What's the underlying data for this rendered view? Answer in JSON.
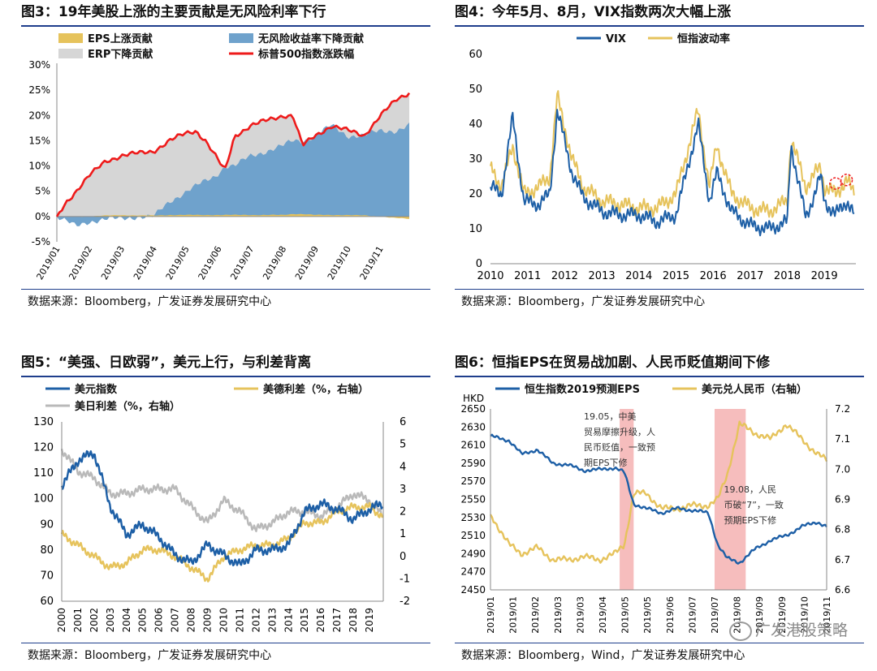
{
  "colors": {
    "rule": "#1f3e8c",
    "blue_dark": "#1d5fa6",
    "blue_light": "#6fa2cc",
    "gold": "#e6c35c",
    "gray": "#d6d6d6",
    "red": "#ee1b1b",
    "gray_line": "#b9b9b9",
    "pink": "#f5b2b2"
  },
  "panels": {
    "p3": {
      "title": "图3：19年美股上涨的主要贡献是无风险利率下行",
      "source": "数据来源：Bloomberg，广发证券发展研究中心"
    },
    "p4": {
      "title": "图4：今年5月、8月，VIX指数两次大幅上涨",
      "source": "数据来源：Bloomberg，广发证券发展研究中心"
    },
    "p5": {
      "title": "图5：“美强、日欧弱”，美元上行，与利差背离",
      "source": "数据来源：Bloomberg，广发证券发展研究中心"
    },
    "p6": {
      "title": "图6：恒指EPS在贸易战加剧、人民币贬值期间下修",
      "source": "数据来源：Bloomberg，Wind，广发证券发展研究中心"
    }
  },
  "watermark": "广发港股策略",
  "chart_data": [
    {
      "id": "fig3",
      "type": "area",
      "title": "19年美股上涨的主要贡献是无风险利率下行",
      "legend": [
        "EPS上涨贡献",
        "无风险收益率下降贡献",
        "ERP下降贡献",
        "标普500指数涨跌幅"
      ],
      "ylim": [
        -5,
        30
      ],
      "yticks": [
        "-5%",
        "0%",
        "5%",
        "10%",
        "15%",
        "20%",
        "25%",
        "30%"
      ],
      "xticks": [
        "2019/01",
        "2019/02",
        "2019/03",
        "2019/04",
        "2019/05",
        "2019/06",
        "2019/07",
        "2019/08",
        "2019/09",
        "2019/10",
        "2019/11"
      ],
      "x": [
        0,
        0.3,
        0.6,
        1,
        1.5,
        2,
        2.5,
        3,
        3.5,
        4,
        4.3,
        4.6,
        4.9,
        5.2,
        5.5,
        6,
        6.5,
        7,
        7.3,
        7.6,
        8,
        8.5,
        9,
        9.5,
        10,
        10.5,
        10.9
      ],
      "series": [
        {
          "name": "标普500指数涨跌幅",
          "values": [
            0,
            3,
            5,
            8,
            11,
            12,
            12.5,
            13,
            15,
            16.5,
            17,
            15,
            12,
            9,
            16,
            18,
            19,
            20,
            20,
            14,
            16,
            18,
            17,
            16,
            20,
            23,
            24.5
          ]
        },
        {
          "name": "无风险收益率下降贡献",
          "values": [
            0,
            -1,
            -2,
            -1,
            -0.5,
            -0.5,
            0,
            0,
            3,
            5,
            6,
            7,
            8,
            10,
            10,
            12,
            13,
            14,
            15,
            15,
            16,
            18,
            16,
            16,
            17,
            17,
            18
          ]
        },
        {
          "name": "EPS上涨贡献",
          "values": [
            0,
            0,
            0,
            0,
            0.2,
            0.3,
            0.2,
            0.2,
            0.3,
            0.3,
            0.3,
            0.3,
            0.3,
            0.3,
            0.3,
            0.3,
            0.3,
            0.3,
            0.5,
            0.5,
            0.3,
            0.3,
            0.3,
            0.2,
            0,
            -0.3,
            -0.5
          ]
        }
      ]
    },
    {
      "id": "fig4",
      "type": "line",
      "title": "今年5月、8月，VIX指数两次大幅上涨",
      "legend": [
        "VIX",
        "恒指波动率"
      ],
      "ylim": [
        0,
        60
      ],
      "yticks": [
        "0",
        "10",
        "20",
        "30",
        "40",
        "50",
        "60"
      ],
      "xticks": [
        "2010",
        "2011",
        "2012",
        "2013",
        "2014",
        "2015",
        "2016",
        "2017",
        "2018",
        "2019"
      ],
      "x": [
        2010,
        2010.3,
        2010.6,
        2010.9,
        2011.3,
        2011.6,
        2011.8,
        2012.2,
        2012.5,
        2013,
        2013.5,
        2014,
        2014.5,
        2015,
        2015.6,
        2015.9,
        2016.1,
        2016.5,
        2017,
        2017.5,
        2018,
        2018.1,
        2018.5,
        2018.9,
        2019,
        2019.3,
        2019.6,
        2019.8
      ],
      "series": [
        {
          "name": "VIX",
          "values": [
            22,
            20,
            42,
            18,
            17,
            20,
            44,
            26,
            19,
            15,
            14,
            14,
            12,
            14,
            40,
            18,
            26,
            15,
            11,
            10,
            12,
            34,
            13,
            25,
            18,
            14,
            18,
            14
          ]
        },
        {
          "name": "恒指波动率",
          "values": [
            28,
            22,
            34,
            20,
            22,
            25,
            48,
            30,
            22,
            18,
            17,
            16,
            16,
            20,
            44,
            22,
            34,
            20,
            16,
            15,
            18,
            36,
            22,
            28,
            22,
            20,
            24,
            20
          ]
        }
      ],
      "markers": [
        2019.3,
        2019.6
      ]
    },
    {
      "id": "fig5",
      "type": "line",
      "title": "“美强、日欧弱”，美元上行，与利差背离",
      "legend": [
        "美元指数",
        "美德利差（%，右轴）",
        "美日利差（%，右轴）"
      ],
      "ylim": [
        60,
        130
      ],
      "y2lim": [
        -2,
        6
      ],
      "yticks": [
        "60",
        "70",
        "80",
        "90",
        "100",
        "110",
        "120",
        "130"
      ],
      "y2ticks": [
        "-2",
        "-1",
        "0",
        "1",
        "2",
        "3",
        "4",
        "5",
        "6"
      ],
      "xticks": [
        "2000",
        "2001",
        "2002",
        "2003",
        "2004",
        "2005",
        "2006",
        "2007",
        "2008",
        "2009",
        "2010",
        "2011",
        "2012",
        "2013",
        "2014",
        "2015",
        "2016",
        "2017",
        "2018",
        "2019"
      ],
      "x": [
        2000,
        2001,
        2002,
        2003,
        2004,
        2005,
        2006,
        2007,
        2008,
        2009,
        2010,
        2011,
        2012,
        2013,
        2014,
        2015,
        2016,
        2017,
        2018,
        2019,
        2019.8
      ],
      "series": [
        {
          "name": "美元指数",
          "values": [
            105,
            115,
            118,
            97,
            86,
            90,
            85,
            78,
            75,
            82,
            78,
            74,
            80,
            80,
            82,
            95,
            98,
            96,
            92,
            96,
            98
          ]
        },
        {
          "name": "美德利差（%，右轴）",
          "values": [
            1,
            0.5,
            0,
            -0.5,
            -0.3,
            0.3,
            0.3,
            0,
            -0.5,
            -1,
            0,
            0.3,
            0.5,
            0.5,
            0.8,
            1.5,
            1.5,
            2,
            2.2,
            2.2,
            1.8
          ]
        },
        {
          "name": "美日利差（%，右轴）",
          "values": [
            4.8,
            3.8,
            3.5,
            2.8,
            2.8,
            3,
            3,
            3,
            2.2,
            1.5,
            2.5,
            2,
            1.2,
            1.5,
            2,
            2,
            1.8,
            2.2,
            2.8,
            2.5,
            1.8
          ]
        }
      ]
    },
    {
      "id": "fig6",
      "type": "line",
      "title": "恒指EPS在贸易战加剧、人民币贬值期间下修",
      "legend": [
        "恒生指数2019预测EPS",
        "美元兑人民币（右轴）"
      ],
      "ylabel": "HKD",
      "ylim": [
        2450,
        2650
      ],
      "y2lim": [
        6.6,
        7.2
      ],
      "yticks": [
        "2450",
        "2470",
        "2490",
        "2510",
        "2530",
        "2550",
        "2570",
        "2590",
        "2610",
        "2630",
        "2650"
      ],
      "y2ticks": [
        "6.6",
        "6.7",
        "6.8",
        "6.9",
        "7.0",
        "7.1",
        "7.2"
      ],
      "xticks": [
        "2019/01",
        "2019/01",
        "2019/02",
        "2019/03",
        "2019/03",
        "2019/04",
        "2019/05",
        "2019/05",
        "2019/06",
        "2019/07",
        "2019/07",
        "2019/08",
        "2019/09",
        "2019/09",
        "2019/10",
        "2019/11"
      ],
      "x": [
        0,
        0.6,
        1,
        1.5,
        2,
        2.5,
        3,
        3.5,
        4,
        4.3,
        4.6,
        5,
        5.5,
        6,
        6.5,
        7,
        7.3,
        7.6,
        8,
        8.5,
        9,
        9.5,
        10,
        10.5,
        10.8
      ],
      "series": [
        {
          "name": "恒生指数2019预测EPS",
          "values": [
            2620,
            2615,
            2600,
            2605,
            2590,
            2588,
            2582,
            2583,
            2585,
            2580,
            2545,
            2540,
            2535,
            2540,
            2538,
            2535,
            2500,
            2485,
            2480,
            2495,
            2505,
            2510,
            2520,
            2525,
            2520
          ]
        },
        {
          "name": "美元兑人民币（右轴）",
          "values": [
            6.85,
            6.75,
            6.72,
            6.74,
            6.7,
            6.7,
            6.71,
            6.7,
            6.72,
            6.75,
            6.92,
            6.92,
            6.87,
            6.87,
            6.88,
            6.88,
            6.9,
            6.98,
            7.15,
            7.12,
            7.1,
            7.15,
            7.1,
            7.05,
            7.03
          ]
        }
      ],
      "highlights": [
        [
          4.15,
          4.6
        ],
        [
          7.2,
          8.2
        ]
      ],
      "annotations": [
        "19.05，中美贸易摩擦升级，人民币贬值，一致预期EPS下修",
        "19.08，人民币破“7”，一致预期EPS下修"
      ]
    }
  ]
}
